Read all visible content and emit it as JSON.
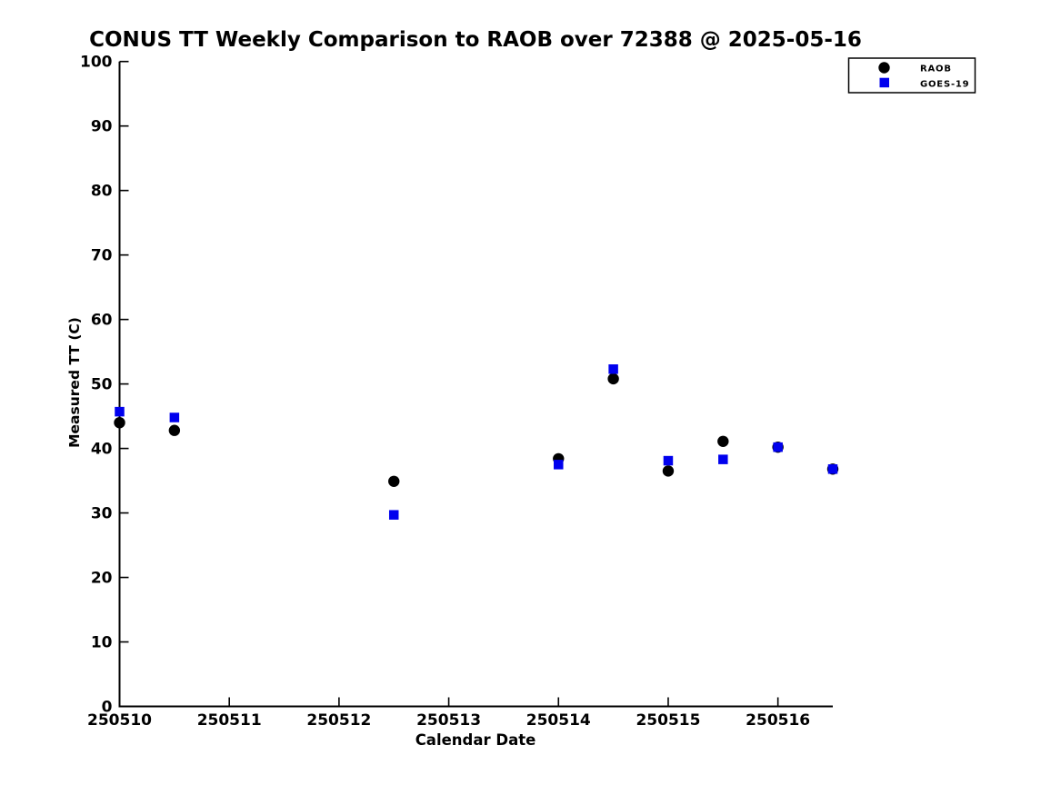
{
  "figure": {
    "background": "#ffffff"
  },
  "chart_data": {
    "type": "scatter",
    "title": "CONUS TT Weekly Comparison to RAOB over 72388 @ 2025-05-16",
    "xlabel": "Calendar Date",
    "ylabel": "Measured TT (C)",
    "xlim": [
      250510,
      250516.5
    ],
    "ylim": [
      0,
      100
    ],
    "x_ticks": [
      250510,
      250511,
      250512,
      250513,
      250514,
      250515,
      250516
    ],
    "x_tick_labels": [
      "250510",
      "250511",
      "250512",
      "250513",
      "250514",
      "250515",
      "250516"
    ],
    "y_ticks": [
      0,
      10,
      20,
      30,
      40,
      50,
      60,
      70,
      80,
      90,
      100
    ],
    "y_tick_labels": [
      "0",
      "10",
      "20",
      "30",
      "40",
      "50",
      "60",
      "70",
      "80",
      "90",
      "100"
    ],
    "grid": false,
    "legend_position": "upper right",
    "axis_color": "#000000",
    "series": [
      {
        "name": "RAOB",
        "marker": "circle",
        "color": "#000000",
        "x": [
          250510.0,
          250510.5,
          250512.5,
          250514.0,
          250514.5,
          250515.0,
          250515.5,
          250516.0,
          250516.5
        ],
        "y": [
          44.0,
          42.8,
          34.9,
          38.4,
          50.8,
          36.5,
          41.1,
          40.2,
          36.8
        ]
      },
      {
        "name": "GOES-19",
        "marker": "square",
        "color": "#0000ee",
        "x": [
          250510.0,
          250510.5,
          250512.5,
          250514.0,
          250514.5,
          250515.0,
          250515.5,
          250516.0,
          250516.5
        ],
        "y": [
          45.7,
          44.8,
          29.7,
          37.5,
          52.3,
          38.1,
          38.3,
          40.2,
          36.8
        ]
      }
    ]
  },
  "legend": {
    "items": [
      {
        "label": "RAOB",
        "marker": "circle",
        "color": "#000000"
      },
      {
        "label": "GOES-19",
        "marker": "square",
        "color": "#0000ee"
      }
    ]
  }
}
